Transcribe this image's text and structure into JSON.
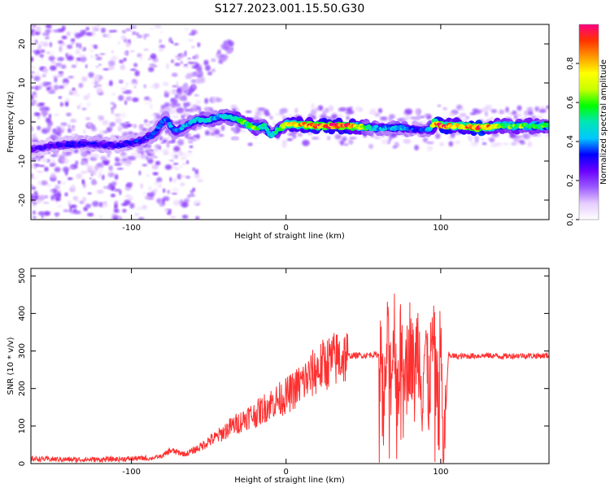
{
  "figure_title": "S127.2023.001.15.50.G30",
  "colors": {
    "snr_line": "#ff3030",
    "frame": "#000000",
    "colormap": [
      "#ffffff",
      "#e6ccff",
      "#9b59ff",
      "#6a00ff",
      "#0000ff",
      "#00c8ff",
      "#00e6b4",
      "#00ff00",
      "#c8ff00",
      "#ffff00",
      "#ff9900",
      "#ff3300",
      "#ff0080"
    ]
  },
  "chart_data": [
    {
      "type": "heatmap",
      "xlabel": "Height of straight line (km)",
      "ylabel": "Frequency (Hz)",
      "xlim": [
        -165,
        170
      ],
      "ylim": [
        -25,
        25
      ],
      "x_ticks": [
        -100,
        0,
        100
      ],
      "y_ticks": [
        -20,
        -10,
        0,
        10,
        20
      ],
      "colorbar": {
        "label": "Normalized spectral amplitude",
        "range": [
          0,
          1
        ],
        "ticks": [
          "0.0",
          "0.2",
          "0.4",
          "0.6",
          "0.8"
        ]
      },
      "ridge": {
        "x": [
          -165,
          -150,
          -130,
          -110,
          -95,
          -85,
          -78,
          -72,
          -65,
          -58,
          -50,
          -42,
          -35,
          -28,
          -20,
          -14,
          -10,
          0,
          20,
          40,
          55,
          65,
          75,
          85,
          93,
          96,
          100,
          110,
          125,
          140,
          155,
          168
        ],
        "y": [
          -7,
          -6,
          -5.5,
          -6,
          -5,
          -3,
          1,
          -2.5,
          -1,
          0.5,
          0.5,
          1.5,
          1,
          0,
          -1.5,
          -1,
          -3.5,
          -0.5,
          -1,
          -1,
          -1.5,
          -1.5,
          -1.5,
          -2,
          -2,
          0,
          -1,
          -1,
          -1.5,
          -1,
          -1,
          -1
        ],
        "amp": [
          0.25,
          0.28,
          0.3,
          0.28,
          0.32,
          0.35,
          0.4,
          0.4,
          0.42,
          0.45,
          0.45,
          0.42,
          0.5,
          0.6,
          0.6,
          0.5,
          0.4,
          0.7,
          0.9,
          0.9,
          0.45,
          0.4,
          0.45,
          0.3,
          0.4,
          0.8,
          0.95,
          0.7,
          0.95,
          0.6,
          0.6,
          0.55
        ]
      }
    },
    {
      "type": "line",
      "xlabel": "Height of straight line (km)",
      "ylabel": "SNR (10 * v/v)",
      "xlim": [
        -165,
        170
      ],
      "ylim": [
        0,
        520
      ],
      "x_ticks": [
        -100,
        0,
        100
      ],
      "y_ticks": [
        0,
        100,
        200,
        300,
        400,
        500
      ],
      "series": [
        {
          "x": [
            -165,
            -140,
            -120,
            -100,
            -90,
            -80,
            -75,
            -70,
            -65,
            -60,
            -55,
            -50,
            -45,
            -40,
            -35,
            -30,
            -25,
            -20,
            -15,
            -10,
            -5,
            0,
            5,
            10,
            15,
            20,
            25,
            30,
            35,
            40,
            45,
            50,
            55,
            60,
            62,
            63,
            65,
            68,
            70,
            72,
            75,
            78,
            80,
            83,
            85,
            88,
            90,
            92,
            95,
            97,
            100,
            102,
            105,
            110,
            120,
            130,
            140,
            150,
            160,
            170
          ],
          "y": [
            10,
            8,
            8,
            10,
            12,
            20,
            35,
            30,
            25,
            35,
            45,
            60,
            70,
            85,
            100,
            110,
            125,
            130,
            145,
            160,
            170,
            180,
            195,
            215,
            230,
            250,
            265,
            275,
            283,
            287,
            288,
            288,
            290,
            290,
            300,
            80,
            320,
            240,
            360,
            200,
            350,
            250,
            320,
            220,
            340,
            200,
            330,
            180,
            340,
            210,
            300,
            30,
            290,
            285,
            287,
            288,
            286,
            288,
            287,
            288
          ]
        }
      ]
    }
  ]
}
